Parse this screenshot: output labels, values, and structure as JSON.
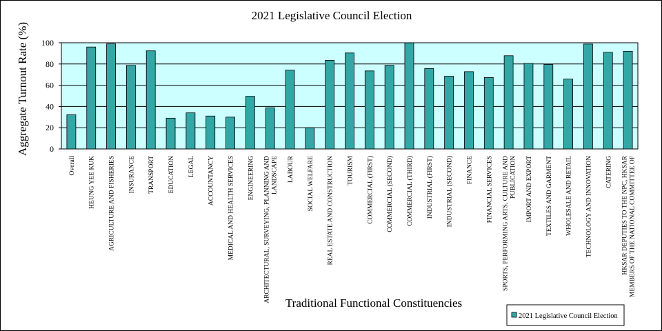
{
  "chart_data": {
    "type": "bar",
    "title": "2021 Legislative Council Election",
    "xlabel": "Traditional Functional Constituencies",
    "ylabel": "Aggregate Turnout Rate (%)",
    "ylim": [
      0,
      100
    ],
    "yticks": [
      0,
      20,
      40,
      60,
      80,
      100
    ],
    "grid": true,
    "legend_position": "bottom-right",
    "colors": {
      "plot_bg": "#ccffff",
      "bar": "#33a6a6",
      "bar_edge": "#000000"
    },
    "categories": [
      [
        "Overall"
      ],
      [
        "HEUNG YEE KUK"
      ],
      [
        "AGRICULTURE AND FISHERIES"
      ],
      [
        "INSURANCE"
      ],
      [
        "TRANSPORT"
      ],
      [
        "EDUCATION"
      ],
      [
        "LEGAL"
      ],
      [
        "ACCOUNTANCY"
      ],
      [
        "MEDICAL AND HEALTH SERVICES"
      ],
      [
        "ENGINEERING"
      ],
      [
        "ARCHITECTURAL, SURVEYING, PLANNING AND",
        "LANDSCAPE"
      ],
      [
        "LABOUR"
      ],
      [
        "SOCIAL WELFARE"
      ],
      [
        "REAL ESTATE AND CONSTRUCTION"
      ],
      [
        "TOURISM"
      ],
      [
        "COMMERCIAL (FIRST)"
      ],
      [
        "COMMERCIAL (SECOND)"
      ],
      [
        "COMMERCIAL (THIRD)"
      ],
      [
        "INDUSTRIAL (FIRST)"
      ],
      [
        "INDUSTRIAL (SECOND)"
      ],
      [
        "FINANCE"
      ],
      [
        "FINANCIAL SERVICES"
      ],
      [
        "SPORTS, PERFORMING ARTS, CULTURE AND",
        "PUBLICATION"
      ],
      [
        "IMPORT AND EXPORT"
      ],
      [
        "TEXTILES AND GARMENT"
      ],
      [
        "WHOLESALE AND RETAIL"
      ],
      [
        "TECHNOLOGY AND INNOVATION"
      ],
      [
        "CATERING"
      ],
      [
        "HKSAR DEPUTIES TO THE NPC, HKSAR",
        "MEMBERS OF THE NATIONAL COMMITTEE OF"
      ]
    ],
    "series": [
      {
        "name": "2021 Legislative Council Election",
        "values": [
          32.2,
          96,
          99,
          78.7,
          92.4,
          29,
          34,
          31,
          30,
          49.6,
          38.8,
          74.2,
          20,
          83.5,
          90.4,
          73.5,
          78.8,
          99.9,
          75.7,
          68.5,
          72.8,
          67.3,
          87.8,
          80.6,
          79.5,
          65.8,
          98.8,
          91,
          92
        ]
      }
    ]
  }
}
